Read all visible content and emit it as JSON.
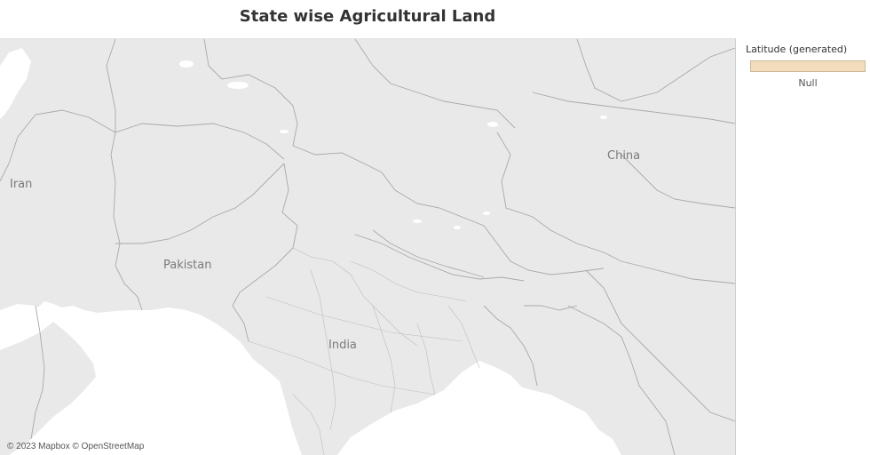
{
  "title": "State wise Agricultural Land",
  "map": {
    "labels": {
      "iran": "Iran",
      "pakistan": "Pakistan",
      "india": "India",
      "china": "China"
    },
    "attribution": "© 2023 Mapbox © OpenStreetMap"
  },
  "legend": {
    "title": "Latitude (generated)",
    "null_label": "Null",
    "swatch_color": "#f2dcbb"
  },
  "colors": {
    "land": "#e9e9e9",
    "water": "#ffffff",
    "border": "#a9a9a9"
  }
}
